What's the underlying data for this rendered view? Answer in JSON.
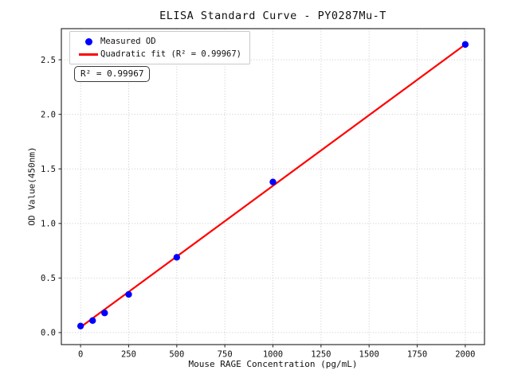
{
  "chart_data": {
    "type": "scatter",
    "title": "ELISA Standard Curve - PY0287Mu-T",
    "xlabel": "Mouse RAGE Concentration (pg/mL)",
    "ylabel": "OD Value(450nm)",
    "xlim": [
      -100,
      2100
    ],
    "ylim": [
      -0.11,
      2.785
    ],
    "xticks": [
      0,
      250,
      500,
      750,
      1000,
      1250,
      1500,
      1750,
      2000
    ],
    "xticklabels": [
      "0",
      "250",
      "500",
      "750",
      "1000",
      "1250",
      "1500",
      "1750",
      "2000"
    ],
    "yticks": [
      0.0,
      0.5,
      1.0,
      1.5,
      2.0,
      2.5
    ],
    "yticklabels": [
      "0.0",
      "0.5",
      "1.0",
      "1.5",
      "2.0",
      "2.5"
    ],
    "grid": true,
    "legend_position": "upper-left",
    "series": [
      {
        "name": "Measured OD",
        "type": "scatter",
        "color": "#0000ff",
        "x": [
          0,
          62.5,
          125,
          250,
          500,
          1000,
          2000
        ],
        "y": [
          0.06,
          0.11,
          0.18,
          0.35,
          0.69,
          1.38,
          2.64
        ]
      },
      {
        "name": "Quadratic fit (R² = 0.99967)",
        "type": "line",
        "color": "#ff0000",
        "x": [
          0,
          2000
        ],
        "y": [
          0.05,
          2.64
        ]
      }
    ],
    "annotation": "R² = 0.99967",
    "r_squared": "0.99967"
  },
  "colors": {
    "scatter": "#0000ff",
    "fit_line": "#ff0000",
    "grid": "#c2c2c2",
    "spine": "#2e2e2e",
    "tick_text": "#111111",
    "background": "#ffffff"
  }
}
